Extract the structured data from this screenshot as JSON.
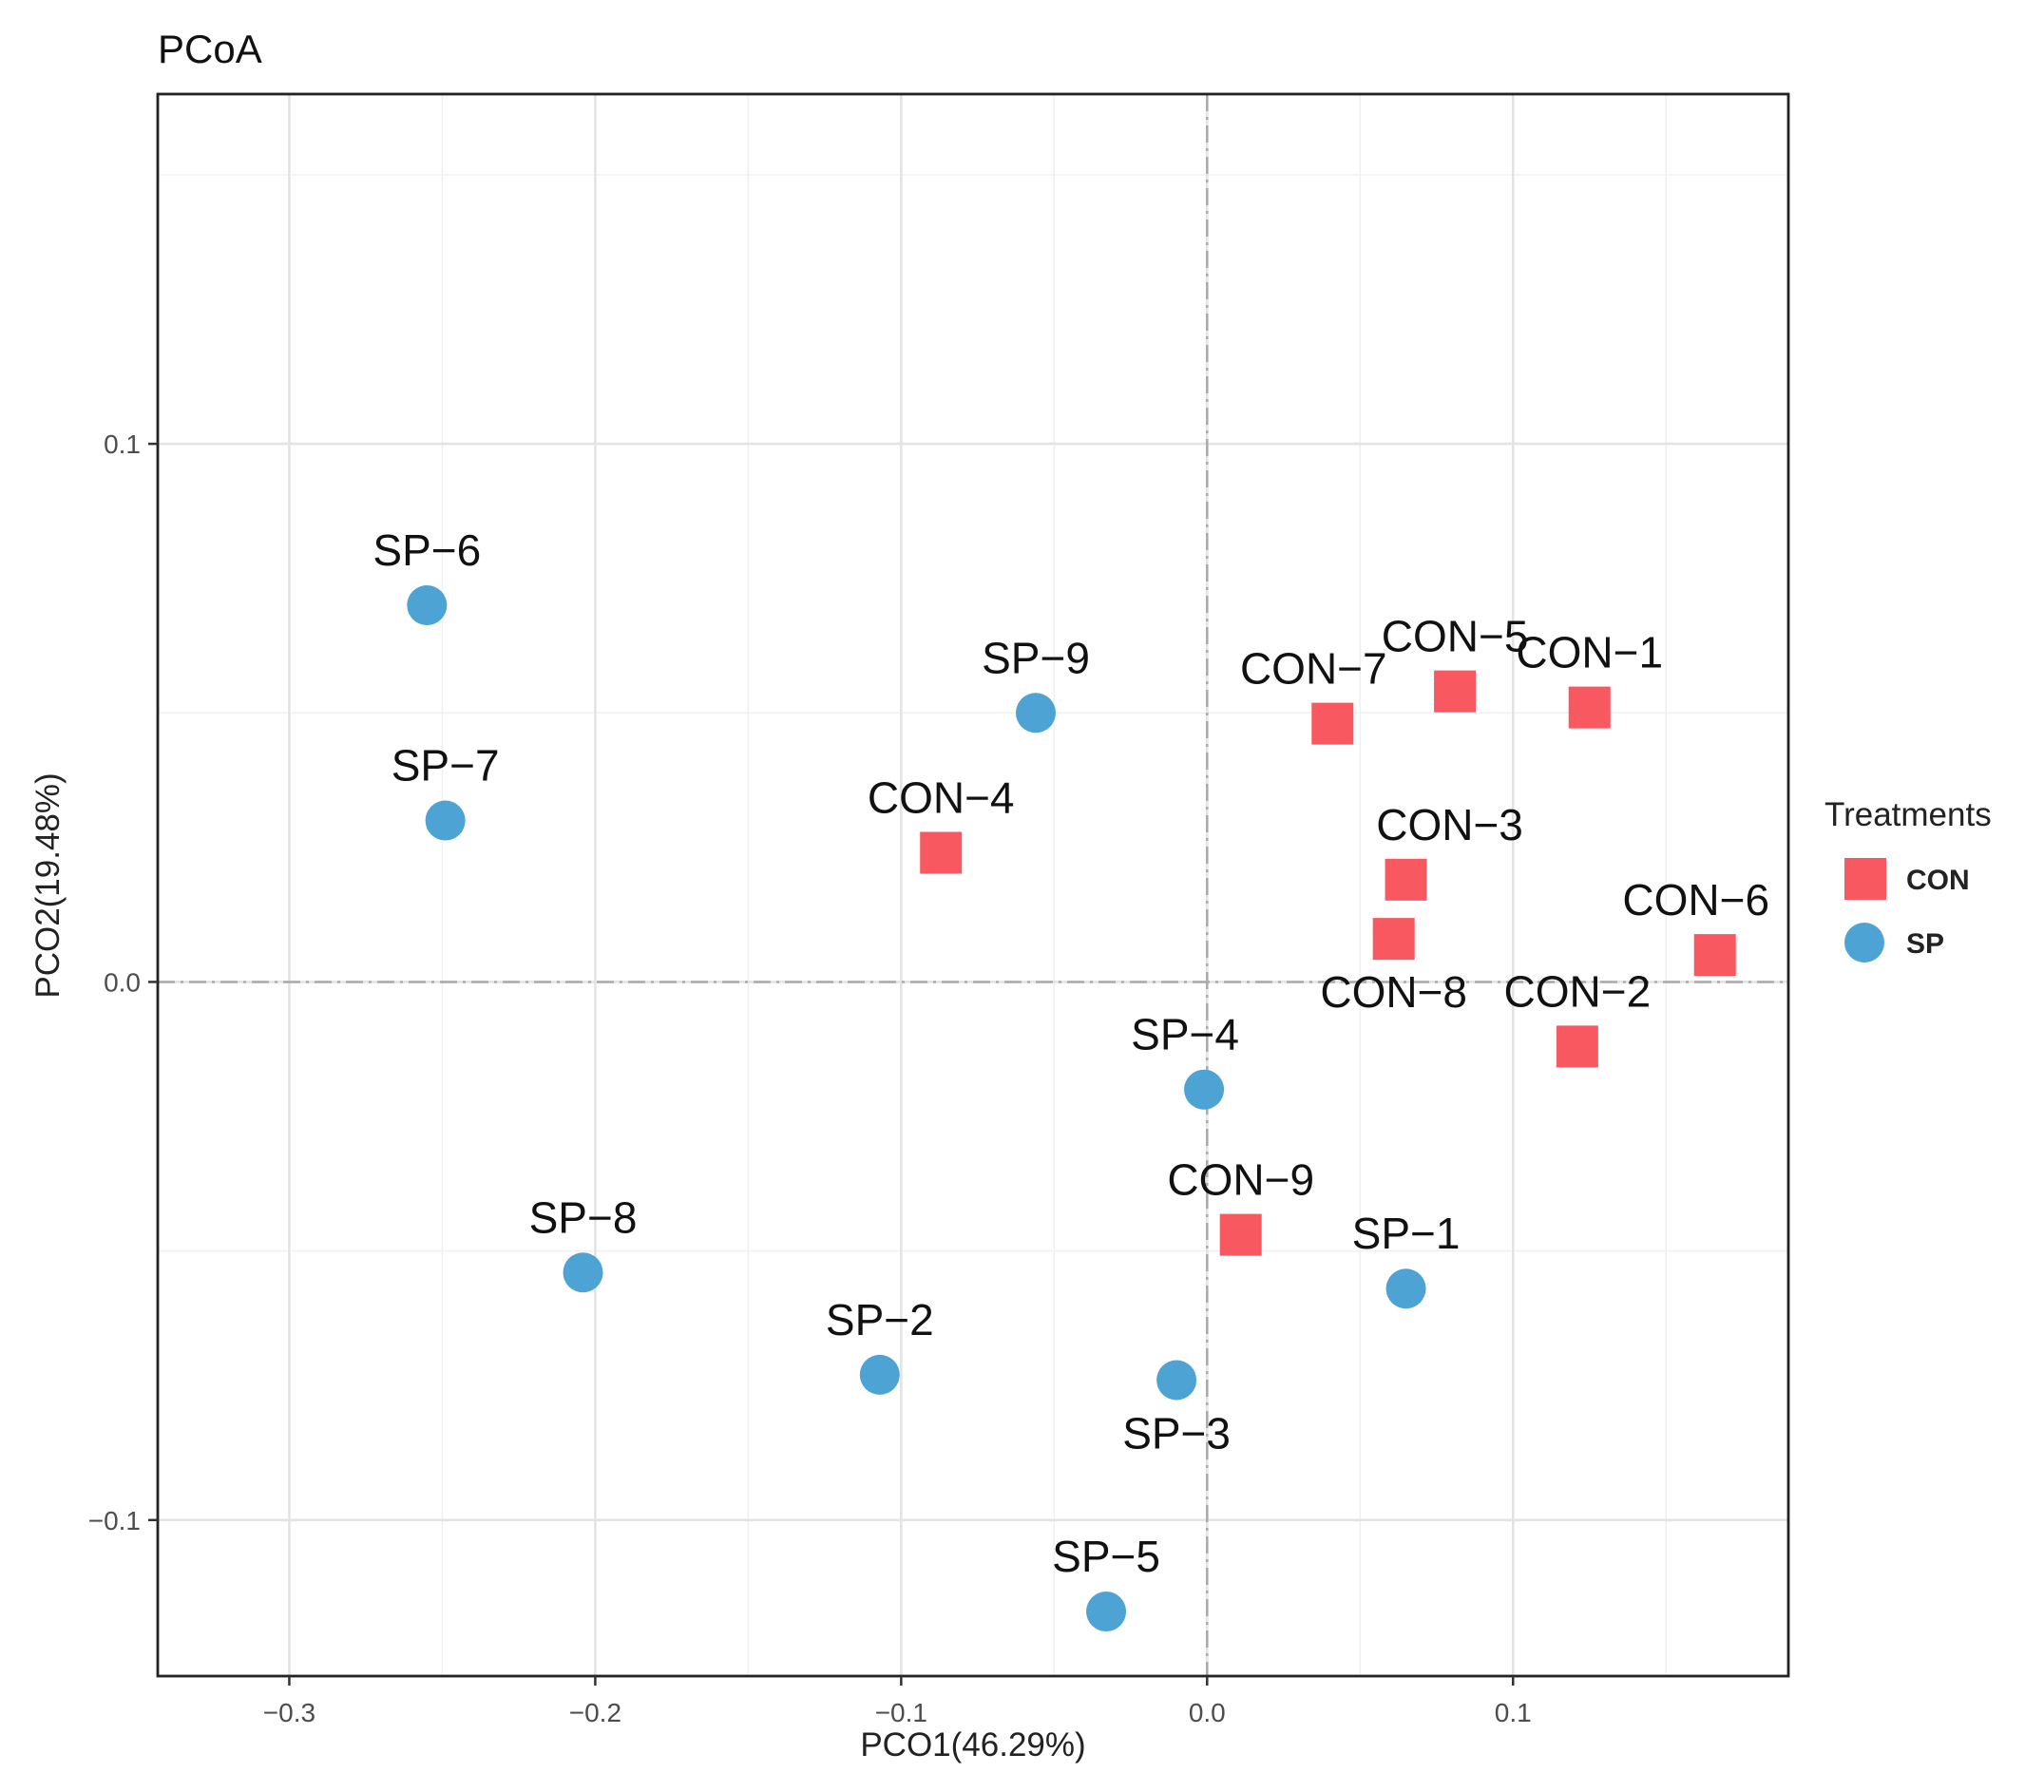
{
  "chart_data": {
    "type": "scatter",
    "title": "PCoA",
    "xlabel": "PCO1(46.29%)",
    "ylabel": "PCO2(19.48%)",
    "xlim": [
      -0.343,
      0.19
    ],
    "ylim": [
      -0.129,
      0.165
    ],
    "x_ticks": [
      -0.3,
      -0.2,
      -0.1,
      0.0,
      0.1
    ],
    "x_tick_labels": [
      "−0.3",
      "−0.2",
      "−0.1",
      "0.0",
      "0.1"
    ],
    "y_ticks": [
      -0.1,
      0.0,
      0.1
    ],
    "y_tick_labels": [
      "−0.1",
      "0.0",
      "0.1"
    ],
    "zero_lines": true,
    "legend": {
      "title": "Treatments",
      "position": "right",
      "entries": [
        {
          "label": "CON",
          "color": "#f8585f",
          "shape": "square"
        },
        {
          "label": "SP",
          "color": "#4da3d3",
          "shape": "circle"
        }
      ]
    },
    "series": [
      {
        "name": "CON",
        "color": "#f8585f",
        "shape": "square",
        "points": [
          {
            "label": "CON−1",
            "x": 0.125,
            "y": 0.051,
            "label_pos": "above"
          },
          {
            "label": "CON−2",
            "x": 0.121,
            "y": -0.012,
            "label_pos": "above"
          },
          {
            "label": "CON−3",
            "x": 0.065,
            "y": 0.019,
            "label_pos": "above-right"
          },
          {
            "label": "CON−4",
            "x": -0.087,
            "y": 0.024,
            "label_pos": "above"
          },
          {
            "label": "CON−5",
            "x": 0.081,
            "y": 0.054,
            "label_pos": "above"
          },
          {
            "label": "CON−6",
            "x": 0.166,
            "y": 0.005,
            "label_pos": "above-left"
          },
          {
            "label": "CON−7",
            "x": 0.041,
            "y": 0.048,
            "label_pos": "above-left"
          },
          {
            "label": "CON−8",
            "x": 0.061,
            "y": 0.008,
            "label_pos": "below"
          },
          {
            "label": "CON−9",
            "x": 0.011,
            "y": -0.047,
            "label_pos": "above"
          }
        ]
      },
      {
        "name": "SP",
        "color": "#4da3d3",
        "shape": "circle",
        "points": [
          {
            "label": "SP−1",
            "x": 0.065,
            "y": -0.057,
            "label_pos": "above"
          },
          {
            "label": "SP−2",
            "x": -0.107,
            "y": -0.073,
            "label_pos": "above"
          },
          {
            "label": "SP−3",
            "x": -0.01,
            "y": -0.074,
            "label_pos": "below"
          },
          {
            "label": "SP−4",
            "x": -0.001,
            "y": -0.02,
            "label_pos": "above-left"
          },
          {
            "label": "SP−5",
            "x": -0.033,
            "y": -0.117,
            "label_pos": "above"
          },
          {
            "label": "SP−6",
            "x": -0.255,
            "y": 0.07,
            "label_pos": "above"
          },
          {
            "label": "SP−7",
            "x": -0.249,
            "y": 0.03,
            "label_pos": "above"
          },
          {
            "label": "SP−8",
            "x": -0.204,
            "y": -0.054,
            "label_pos": "above"
          },
          {
            "label": "SP−9",
            "x": -0.056,
            "y": 0.05,
            "label_pos": "above"
          }
        ]
      }
    ]
  }
}
